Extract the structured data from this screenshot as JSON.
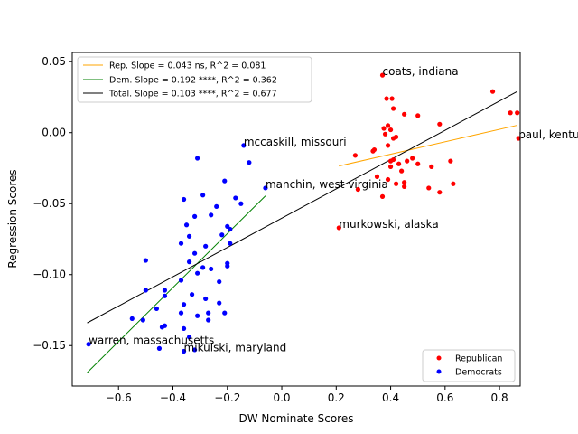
{
  "chart_data": {
    "type": "scatter",
    "xlabel": "DW Nominate Scores",
    "ylabel": "Regression Scores",
    "xlim": [
      -0.77,
      0.876
    ],
    "ylim": [
      -0.1785,
      0.0565
    ],
    "xticks": [
      -0.6,
      -0.4,
      -0.2,
      0.0,
      0.2,
      0.4,
      0.6,
      0.8
    ],
    "xtick_labels": [
      "−0.6",
      "−0.4",
      "−0.2",
      "0.0",
      "0.2",
      "0.4",
      "0.6",
      "0.8"
    ],
    "yticks": [
      0.05,
      0.0,
      -0.05,
      -0.1,
      -0.15
    ],
    "ytick_labels": [
      "0.05",
      "0.00",
      "−0.05",
      "−0.10",
      "−0.15"
    ],
    "fit_lines": [
      {
        "name": "Rep. Slope = 0.043 ns, R^2 = 0.081",
        "color": "#ffa500",
        "x": [
          0.21,
          0.865
        ],
        "y": [
          -0.0235,
          0.0052
        ]
      },
      {
        "name": "Dem. Slope = 0.192 ****, R^2 = 0.362",
        "color": "#008000",
        "x": [
          -0.715,
          -0.06
        ],
        "y": [
          -0.169,
          -0.0445
        ]
      },
      {
        "name": "Total. Slope = 0.103 ****, R^2 = 0.677",
        "color": "#000000",
        "x": [
          -0.715,
          0.865
        ],
        "y": [
          -0.134,
          0.029
        ]
      }
    ],
    "series": [
      {
        "name": "Republican",
        "color": "#ff0000",
        "points": [
          [
            0.37,
            0.0405
          ],
          [
            0.385,
            0.024
          ],
          [
            0.405,
            0.024
          ],
          [
            0.775,
            0.029
          ],
          [
            0.84,
            0.014
          ],
          [
            0.865,
            0.014
          ],
          [
            0.87,
            -0.004
          ],
          [
            0.58,
            0.006
          ],
          [
            0.5,
            0.012
          ],
          [
            0.45,
            0.013
          ],
          [
            0.41,
            0.017
          ],
          [
            0.39,
            0.005
          ],
          [
            0.375,
            0.003
          ],
          [
            0.4,
            0.002
          ],
          [
            0.38,
            -0.001
          ],
          [
            0.42,
            -0.003
          ],
          [
            0.41,
            -0.004
          ],
          [
            0.39,
            -0.009
          ],
          [
            0.34,
            -0.012
          ],
          [
            0.335,
            -0.013
          ],
          [
            0.27,
            -0.016
          ],
          [
            0.4,
            -0.02
          ],
          [
            0.41,
            -0.019
          ],
          [
            0.43,
            -0.022
          ],
          [
            0.46,
            -0.02
          ],
          [
            0.48,
            -0.018
          ],
          [
            0.5,
            -0.022
          ],
          [
            0.55,
            -0.024
          ],
          [
            0.62,
            -0.02
          ],
          [
            0.4,
            -0.024
          ],
          [
            0.44,
            -0.027
          ],
          [
            0.35,
            -0.031
          ],
          [
            0.39,
            -0.033
          ],
          [
            0.45,
            -0.035
          ],
          [
            0.45,
            -0.038
          ],
          [
            0.42,
            -0.036
          ],
          [
            0.63,
            -0.036
          ],
          [
            0.54,
            -0.039
          ],
          [
            0.28,
            -0.04
          ],
          [
            0.58,
            -0.042
          ],
          [
            0.37,
            -0.045
          ],
          [
            0.21,
            -0.067
          ]
        ]
      },
      {
        "name": "Democrats",
        "color": "#0000ff",
        "points": [
          [
            -0.14,
            -0.009
          ],
          [
            -0.12,
            -0.021
          ],
          [
            -0.31,
            -0.018
          ],
          [
            -0.21,
            -0.034
          ],
          [
            -0.06,
            -0.039
          ],
          [
            -0.29,
            -0.044
          ],
          [
            -0.36,
            -0.047
          ],
          [
            -0.17,
            -0.046
          ],
          [
            -0.15,
            -0.05
          ],
          [
            -0.24,
            -0.052
          ],
          [
            -0.32,
            -0.059
          ],
          [
            -0.26,
            -0.058
          ],
          [
            -0.35,
            -0.065
          ],
          [
            -0.2,
            -0.066
          ],
          [
            -0.19,
            -0.068
          ],
          [
            -0.22,
            -0.072
          ],
          [
            -0.34,
            -0.073
          ],
          [
            -0.28,
            -0.08
          ],
          [
            -0.37,
            -0.078
          ],
          [
            -0.19,
            -0.078
          ],
          [
            -0.32,
            -0.085
          ],
          [
            -0.5,
            -0.09
          ],
          [
            -0.34,
            -0.091
          ],
          [
            -0.2,
            -0.092
          ],
          [
            -0.2,
            -0.094
          ],
          [
            -0.29,
            -0.095
          ],
          [
            -0.26,
            -0.096
          ],
          [
            -0.31,
            -0.099
          ],
          [
            -0.37,
            -0.104
          ],
          [
            -0.23,
            -0.105
          ],
          [
            -0.5,
            -0.111
          ],
          [
            -0.43,
            -0.111
          ],
          [
            -0.43,
            -0.115
          ],
          [
            -0.33,
            -0.114
          ],
          [
            -0.28,
            -0.117
          ],
          [
            -0.23,
            -0.12
          ],
          [
            -0.36,
            -0.121
          ],
          [
            -0.46,
            -0.124
          ],
          [
            -0.37,
            -0.127
          ],
          [
            -0.27,
            -0.127
          ],
          [
            -0.21,
            -0.127
          ],
          [
            -0.31,
            -0.129
          ],
          [
            -0.55,
            -0.131
          ],
          [
            -0.51,
            -0.132
          ],
          [
            -0.27,
            -0.132
          ],
          [
            -0.43,
            -0.136
          ],
          [
            -0.44,
            -0.137
          ],
          [
            -0.36,
            -0.138
          ],
          [
            -0.34,
            -0.144
          ],
          [
            -0.71,
            -0.149
          ],
          [
            -0.45,
            -0.152
          ],
          [
            -0.32,
            -0.153
          ],
          [
            -0.36,
            -0.154
          ]
        ]
      }
    ],
    "annotations": [
      {
        "text": "coats, indiana",
        "x": 0.37,
        "y": 0.0405
      },
      {
        "text": "paul, kentucky",
        "x": 0.87,
        "y": -0.004
      },
      {
        "text": "mccaskill, missouri",
        "x": -0.14,
        "y": -0.009
      },
      {
        "text": "manchin, west virginia",
        "x": -0.06,
        "y": -0.039
      },
      {
        "text": "murkowski, alaska",
        "x": 0.21,
        "y": -0.067
      },
      {
        "text": "warren, massachusetts",
        "x": -0.71,
        "y": -0.149
      },
      {
        "text": "mikulski, maryland",
        "x": -0.36,
        "y": -0.154
      }
    ],
    "legend_lines_placement": "upper-left",
    "legend_points_placement": "lower-right"
  }
}
